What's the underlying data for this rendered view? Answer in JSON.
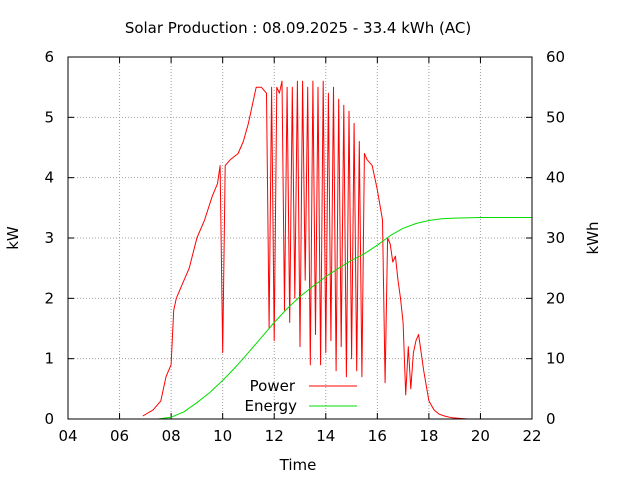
{
  "chart_data": {
    "type": "line",
    "title": "Solar Production : 08.09.2025 - 33.4 kWh (AC)",
    "xlabel": "Time",
    "ylabel": "kW",
    "y2label": "kWh",
    "xlim": [
      4,
      22
    ],
    "ylim": [
      0,
      6
    ],
    "y2lim": [
      0,
      60
    ],
    "x_ticks": [
      "04",
      "06",
      "08",
      "10",
      "12",
      "14",
      "16",
      "18",
      "20",
      "22"
    ],
    "y_ticks": [
      "0",
      "1",
      "2",
      "3",
      "4",
      "5",
      "6"
    ],
    "y2_ticks": [
      "0",
      "10",
      "20",
      "30",
      "40",
      "50",
      "60"
    ],
    "grid": true,
    "legend_position": "bottom-center",
    "series": [
      {
        "name": "Power",
        "axis": "left",
        "color": "#ff0000",
        "x": [
          6.9,
          7.3,
          7.6,
          7.7,
          7.8,
          8.0,
          8.1,
          8.2,
          8.4,
          8.7,
          9.0,
          9.3,
          9.6,
          9.8,
          9.9,
          10.0,
          10.1,
          10.3,
          10.6,
          10.8,
          11.0,
          11.2,
          11.3,
          11.5,
          11.7,
          11.8,
          11.9,
          12.0,
          12.1,
          12.2,
          12.3,
          12.4,
          12.5,
          12.6,
          12.7,
          12.8,
          12.9,
          13.0,
          13.1,
          13.2,
          13.3,
          13.4,
          13.5,
          13.6,
          13.7,
          13.8,
          13.9,
          14.0,
          14.1,
          14.2,
          14.3,
          14.4,
          14.5,
          14.6,
          14.7,
          14.8,
          14.9,
          15.0,
          15.1,
          15.2,
          15.3,
          15.4,
          15.5,
          15.6,
          15.8,
          16.0,
          16.2,
          16.3,
          16.4,
          16.5,
          16.6,
          16.7,
          16.8,
          16.9,
          17.0,
          17.1,
          17.2,
          17.3,
          17.4,
          17.5,
          17.6,
          17.8,
          18.0,
          18.2,
          18.4,
          18.6,
          18.9,
          19.2,
          19.5,
          19.9
        ],
        "values": [
          0.05,
          0.15,
          0.3,
          0.5,
          0.7,
          0.9,
          1.8,
          2.0,
          2.2,
          2.5,
          3.0,
          3.3,
          3.7,
          3.9,
          4.2,
          1.1,
          4.2,
          4.3,
          4.4,
          4.6,
          4.9,
          5.3,
          5.5,
          5.5,
          5.4,
          1.5,
          5.5,
          1.3,
          5.5,
          5.4,
          5.6,
          1.8,
          5.5,
          1.6,
          5.5,
          2.0,
          5.6,
          1.2,
          5.6,
          2.3,
          5.5,
          0.9,
          5.6,
          1.4,
          5.5,
          0.9,
          5.6,
          1.1,
          5.4,
          1.3,
          5.5,
          0.8,
          5.3,
          1.2,
          5.2,
          0.7,
          5.1,
          1.0,
          4.9,
          0.8,
          4.6,
          0.7,
          4.4,
          4.3,
          4.2,
          3.8,
          3.3,
          0.6,
          3.0,
          2.9,
          2.6,
          2.7,
          2.3,
          2.0,
          1.6,
          0.4,
          1.2,
          0.5,
          1.1,
          1.3,
          1.4,
          0.8,
          0.3,
          0.15,
          0.08,
          0.05,
          0.02,
          0.01,
          0.0,
          0.0
        ]
      },
      {
        "name": "Energy",
        "axis": "right",
        "color": "#00dd00",
        "x": [
          7.5,
          8.0,
          8.5,
          9.0,
          9.5,
          10.0,
          10.5,
          11.0,
          11.5,
          12.0,
          12.5,
          13.0,
          13.5,
          14.0,
          14.5,
          15.0,
          15.5,
          16.0,
          16.5,
          17.0,
          17.5,
          18.0,
          18.5,
          19.0,
          20.0,
          21.0,
          22.0
        ],
        "values": [
          0.0,
          0.3,
          1.2,
          2.7,
          4.4,
          6.4,
          8.6,
          11.0,
          13.5,
          16.0,
          18.3,
          20.3,
          22.0,
          23.6,
          25.0,
          26.3,
          27.4,
          28.8,
          30.4,
          31.6,
          32.4,
          32.9,
          33.2,
          33.3,
          33.4,
          33.4,
          33.4
        ]
      }
    ]
  }
}
